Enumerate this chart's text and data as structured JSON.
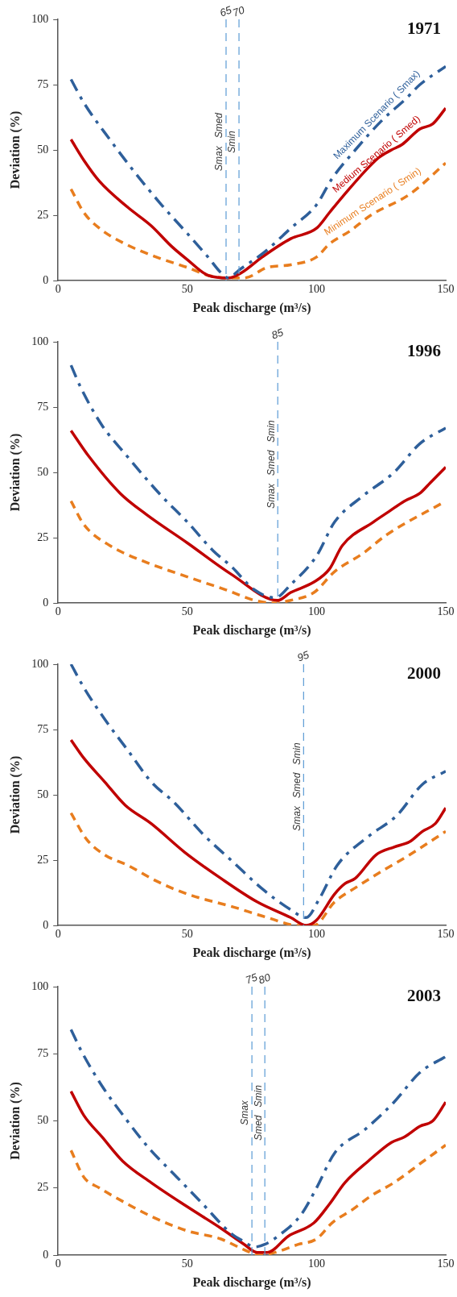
{
  "chart_data": [
    {
      "type": "line",
      "title": "1971",
      "xlabel": "Peak discharge (m³/s)",
      "ylabel": "Deviation (%)",
      "xlim": [
        0,
        150
      ],
      "xticks": [
        0,
        50,
        100,
        150
      ],
      "ylim": [
        0,
        100
      ],
      "yticks": [
        0,
        25,
        50,
        75,
        100
      ],
      "grid": false,
      "legend": false,
      "series": [
        {
          "name": "Maximum Scenario ( Smax)",
          "color": "#2e5f9a",
          "line_style": "dashdot",
          "x": [
            5,
            10,
            20,
            30,
            40,
            50,
            58,
            63,
            66,
            70,
            80,
            90,
            100,
            106,
            115,
            125,
            135,
            140,
            150
          ],
          "values": [
            77,
            68,
            54,
            41,
            29,
            18,
            9,
            3,
            1,
            4,
            11,
            20,
            29,
            39,
            50,
            61,
            70,
            75,
            82
          ]
        },
        {
          "name": "Medium Scenario ( Smed)",
          "color": "#c00000",
          "line_style": "solid",
          "x": [
            5,
            10,
            16,
            27,
            36,
            44,
            50,
            58,
            66,
            71,
            79,
            90,
            100,
            105,
            110,
            124,
            129,
            133,
            140,
            145,
            150
          ],
          "values": [
            54,
            46,
            38,
            28,
            21,
            13,
            8,
            2,
            1,
            3,
            9,
            16,
            20,
            26,
            32,
            47,
            50,
            52,
            58,
            60,
            66
          ]
        },
        {
          "name": "Minimum Scenario ( Smin)",
          "color": "#e87d1e",
          "line_style": "dashed",
          "x": [
            5,
            10,
            16,
            26,
            38,
            50,
            58,
            65,
            72,
            81,
            90,
            100,
            105,
            113,
            121,
            136,
            150
          ],
          "values": [
            35,
            26,
            20,
            14,
            9,
            5,
            2,
            1,
            1,
            5,
            6,
            9,
            14,
            19,
            25,
            33,
            45
          ]
        }
      ],
      "ref_lines": [
        {
          "axis": "x",
          "value": 65,
          "label": "65",
          "color": "#5b9bd5",
          "line_style": "dashed"
        },
        {
          "axis": "x",
          "value": 70,
          "label": "70",
          "color": "#5b9bd5",
          "line_style": "dashed"
        }
      ],
      "annotations": [
        "Smax   Smed",
        "Smin"
      ]
    },
    {
      "type": "line",
      "title": "1996",
      "xlabel": "Peak discharge (m³/s)",
      "ylabel": "Deviation (%)",
      "xlim": [
        0,
        150
      ],
      "xticks": [
        0,
        50,
        100,
        150
      ],
      "ylim": [
        0,
        100
      ],
      "yticks": [
        0,
        25,
        50,
        75,
        100
      ],
      "grid": false,
      "legend": false,
      "series": [
        {
          "color": "#2e5f9a",
          "line_style": "dashdot",
          "x": [
            5,
            9,
            17,
            26,
            40,
            50,
            60,
            67,
            76,
            84,
            90,
            100,
            107,
            118,
            130,
            140,
            150
          ],
          "values": [
            91,
            82,
            68,
            57,
            41,
            31,
            20,
            14,
            5,
            2,
            7,
            18,
            31,
            41,
            50,
            61,
            67
          ]
        },
        {
          "color": "#c00000",
          "line_style": "solid",
          "x": [
            5,
            12,
            24,
            34,
            50,
            67,
            85,
            90,
            99,
            105,
            110,
            122,
            128,
            134,
            140,
            144,
            150
          ],
          "values": [
            66,
            56,
            42,
            34,
            23,
            11,
            1,
            4,
            8,
            13,
            22,
            31,
            35,
            39,
            42,
            46,
            52
          ]
        },
        {
          "color": "#e87d1e",
          "line_style": "dashed",
          "x": [
            5,
            10,
            20,
            33,
            50,
            65,
            76,
            83,
            90,
            99,
            107,
            118,
            127,
            150
          ],
          "values": [
            39,
            30,
            22,
            16,
            10,
            5,
            1,
            0,
            1,
            4,
            12,
            19,
            26,
            39
          ]
        }
      ],
      "ref_lines": [
        {
          "axis": "x",
          "value": 85,
          "label": "85",
          "color": "#5b9bd5",
          "line_style": "dashed"
        }
      ],
      "annotations": [
        "Smax   Smed   Smin"
      ]
    },
    {
      "type": "line",
      "title": "2000",
      "xlabel": "Peak discharge (m³/s)",
      "ylabel": "Deviation (%)",
      "xlim": [
        0,
        150
      ],
      "xticks": [
        0,
        50,
        100,
        150
      ],
      "ylim": [
        0,
        100
      ],
      "yticks": [
        0,
        25,
        50,
        75,
        100
      ],
      "grid": false,
      "legend": false,
      "series": [
        {
          "color": "#2e5f9a",
          "line_style": "dashdot",
          "x": [
            5,
            10,
            18,
            27,
            36,
            45,
            56,
            68,
            79,
            90,
            96,
            101,
            108,
            120,
            131,
            141,
            150
          ],
          "values": [
            100,
            91,
            79,
            67,
            55,
            47,
            35,
            24,
            14,
            6,
            3,
            10,
            23,
            34,
            42,
            54,
            59
          ]
        },
        {
          "color": "#c00000",
          "line_style": "solid",
          "x": [
            5,
            10,
            18,
            26,
            36,
            49,
            63,
            77,
            90,
            96,
            100,
            107,
            111,
            115,
            123,
            130,
            136,
            141,
            146,
            150
          ],
          "values": [
            71,
            64,
            55,
            46,
            39,
            28,
            18,
            9,
            3,
            0,
            2,
            12,
            16,
            18,
            27,
            30,
            32,
            36,
            39,
            45
          ]
        },
        {
          "color": "#e87d1e",
          "line_style": "dashed",
          "x": [
            5,
            11,
            18,
            27,
            38,
            50,
            68,
            81,
            93,
            99,
            107,
            116,
            124,
            136,
            150
          ],
          "values": [
            43,
            33,
            27,
            23,
            17,
            12,
            7,
            3,
            0,
            0,
            9,
            15,
            20,
            27,
            36
          ]
        }
      ],
      "ref_lines": [
        {
          "axis": "x",
          "value": 95,
          "label": "95",
          "color": "#5b9bd5",
          "line_style": "dashed"
        }
      ],
      "annotations": [
        "Smax   Smed   Smin"
      ]
    },
    {
      "type": "line",
      "title": "2003",
      "xlabel": "Peak discharge (m³/s)",
      "ylabel": "Deviation (%)",
      "xlim": [
        0,
        150
      ],
      "xticks": [
        0,
        50,
        100,
        150
      ],
      "ylim": [
        0,
        100
      ],
      "yticks": [
        0,
        25,
        50,
        75,
        100
      ],
      "grid": false,
      "legend": false,
      "series": [
        {
          "color": "#2e5f9a",
          "line_style": "dashdot",
          "x": [
            5,
            9,
            17,
            26,
            35,
            46,
            56,
            67,
            72,
            76,
            80,
            85,
            94,
            100,
            107,
            119,
            130,
            140,
            150
          ],
          "values": [
            84,
            76,
            63,
            51,
            40,
            29,
            19,
            8,
            5,
            3,
            4,
            7,
            15,
            25,
            38,
            47,
            57,
            68,
            74
          ]
        },
        {
          "color": "#c00000",
          "line_style": "solid",
          "x": [
            5,
            10,
            17,
            25,
            36,
            50,
            63,
            72,
            77,
            81,
            89,
            99,
            105,
            111,
            120,
            129,
            134,
            140,
            145,
            150
          ],
          "values": [
            61,
            52,
            44,
            35,
            27,
            18,
            10,
            4,
            1,
            1,
            7,
            12,
            19,
            27,
            35,
            42,
            44,
            48,
            50,
            57
          ]
        },
        {
          "color": "#e87d1e",
          "line_style": "dashed",
          "x": [
            5,
            10,
            16,
            25,
            37,
            50,
            63,
            72,
            78,
            84,
            93,
            100,
            106,
            114,
            121,
            130,
            140,
            150
          ],
          "values": [
            39,
            29,
            25,
            20,
            14,
            9,
            6,
            2,
            0,
            1,
            4,
            6,
            12,
            17,
            22,
            27,
            34,
            41
          ]
        }
      ],
      "ref_lines": [
        {
          "axis": "x",
          "value": 75,
          "label": "75",
          "color": "#5b9bd5",
          "line_style": "dashed"
        },
        {
          "axis": "x",
          "value": 80,
          "label": "80",
          "color": "#5b9bd5",
          "line_style": "dashed"
        }
      ],
      "annotations": [
        "Smax",
        "Smed   Smin"
      ]
    }
  ]
}
